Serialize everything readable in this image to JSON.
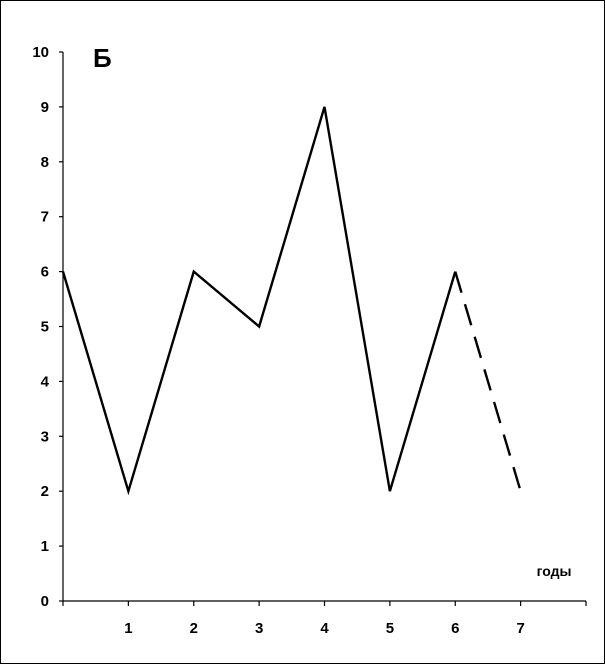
{
  "chart_data": {
    "type": "line",
    "panel_label": "Б",
    "xlabel": "годы",
    "ylabel": "",
    "x": [
      0,
      1,
      2,
      3,
      4,
      5,
      6,
      7
    ],
    "x_tick_labels": [
      "1",
      "2",
      "3",
      "4",
      "5",
      "6",
      "7"
    ],
    "xlim": [
      0,
      8
    ],
    "ylim": [
      0,
      10
    ],
    "y_ticks": [
      0,
      1,
      2,
      3,
      4,
      5,
      6,
      7,
      8,
      9,
      10
    ],
    "series": [
      {
        "style": "solid",
        "color": "#000000",
        "points": [
          [
            0,
            6
          ],
          [
            1,
            2
          ],
          [
            2,
            6
          ],
          [
            3,
            5
          ],
          [
            4,
            9
          ],
          [
            5,
            2
          ],
          [
            6,
            6
          ]
        ]
      },
      {
        "style": "dashed",
        "color": "#000000",
        "points": [
          [
            6,
            6
          ],
          [
            7,
            2
          ]
        ]
      }
    ],
    "grid": false,
    "legend": "none"
  }
}
